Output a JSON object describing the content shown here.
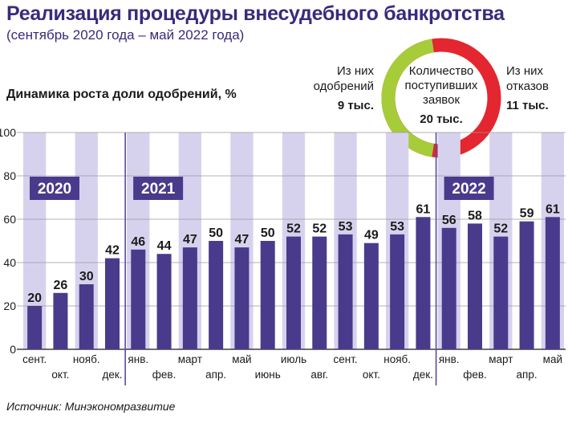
{
  "title": "Реализация процедуры внесудебного банкротства",
  "subtitle": "(сентябрь 2020 года – май 2022 года)",
  "source": "Источник: Минэкономразвитие",
  "colors": {
    "bar": "#4a3a8c",
    "band": "#d6d2ee",
    "title": "#3a2a7c",
    "approved": "#a6cc3a",
    "rejected": "#e3262f",
    "year_label_bg": "#4a3a8c"
  },
  "donut": {
    "center_line1": "Количество",
    "center_line2": "поступивших",
    "center_line3": "заявок",
    "center_total": "20 тыс.",
    "left_line1": "Из них",
    "left_line2": "одобрений",
    "left_value": "9 тыс.",
    "right_line1": "Из них",
    "right_line2": "отказов",
    "right_value": "11 тыс.",
    "approved_value": 9,
    "rejected_value": 11
  },
  "chart_data": {
    "type": "bar",
    "title": "Динамика роста доли одобрений, %",
    "ylabel": "%",
    "ylim": [
      0,
      100
    ],
    "yticks": [
      0,
      20,
      40,
      60,
      80,
      100
    ],
    "categories": [
      "сент.",
      "окт.",
      "нояб.",
      "дек.",
      "янв.",
      "фев.",
      "март",
      "апр.",
      "май",
      "июнь",
      "июль",
      "авг.",
      "сент.",
      "окт.",
      "нояб.",
      "дек.",
      "янв.",
      "фев.",
      "март",
      "апр.",
      "май"
    ],
    "values": [
      20,
      26,
      30,
      42,
      46,
      44,
      47,
      50,
      47,
      50,
      52,
      52,
      53,
      49,
      53,
      61,
      56,
      58,
      52,
      59,
      61
    ],
    "years": [
      {
        "label": "2020",
        "start_index": 0
      },
      {
        "label": "2021",
        "start_index": 4
      },
      {
        "label": "2022",
        "start_index": 16
      }
    ]
  }
}
